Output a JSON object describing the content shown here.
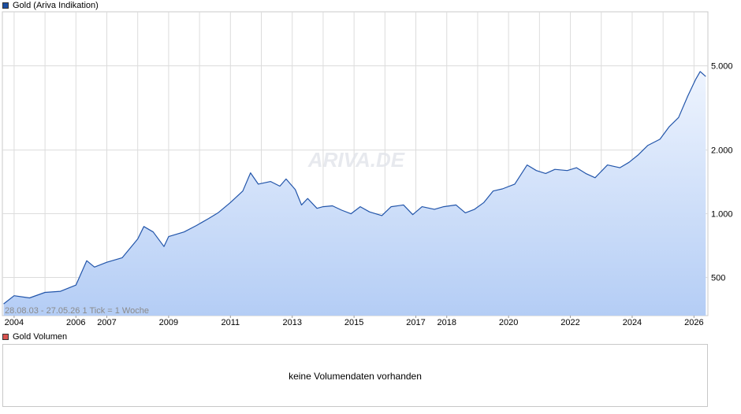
{
  "legend": {
    "price_label": "Gold (Ariva Indikation)",
    "price_color": "#1c4fa3",
    "volume_label": "Gold Volumen",
    "volume_color": "#d9534f"
  },
  "watermark": "ARIVA.DE",
  "info_text": "28.08.03 - 27.05.26    1 Tick = 1 Woche",
  "volume_panel": {
    "message": "keine Volumendaten vorhanden"
  },
  "chart_data": {
    "type": "area",
    "title": "Gold (Ariva Indikation)",
    "xlabel": "",
    "ylabel": "",
    "y_scale": "log",
    "ylim": [
      330,
      9000
    ],
    "xlim": [
      2003.62,
      2026.45
    ],
    "grid": true,
    "line_color": "#2255aa",
    "fill_top_color": "#eef4fe",
    "fill_bottom_color": "#b4cdf5",
    "y_ticks": [
      {
        "value": 500,
        "label": "500"
      },
      {
        "value": 1000,
        "label": "1.000"
      },
      {
        "value": 2000,
        "label": "2.000"
      },
      {
        "value": 5000,
        "label": "5.000"
      }
    ],
    "x_ticks": [
      {
        "value": 2004,
        "label": "2004"
      },
      {
        "value": 2006,
        "label": "2006"
      },
      {
        "value": 2007,
        "label": "2007"
      },
      {
        "value": 2009,
        "label": "2009"
      },
      {
        "value": 2011,
        "label": "2011"
      },
      {
        "value": 2013,
        "label": "2013"
      },
      {
        "value": 2015,
        "label": "2015"
      },
      {
        "value": 2017,
        "label": "2017"
      },
      {
        "value": 2018,
        "label": "2018"
      },
      {
        "value": 2020,
        "label": "2020"
      },
      {
        "value": 2022,
        "label": "2022"
      },
      {
        "value": 2024,
        "label": "2024"
      },
      {
        "value": 2026,
        "label": "2026"
      }
    ],
    "series": [
      {
        "x": [
          2003.66,
          2004.0,
          2004.5,
          2005.0,
          2005.5,
          2006.0,
          2006.35,
          2006.6,
          2007.0,
          2007.5,
          2008.0,
          2008.2,
          2008.5,
          2008.85,
          2009.0,
          2009.5,
          2009.9,
          2010.3,
          2010.6,
          2011.0,
          2011.4,
          2011.65,
          2011.9,
          2012.3,
          2012.6,
          2012.8,
          2013.1,
          2013.3,
          2013.5,
          2013.8,
          2014.0,
          2014.3,
          2014.6,
          2014.9,
          2015.2,
          2015.5,
          2015.9,
          2016.2,
          2016.6,
          2016.9,
          2017.2,
          2017.6,
          2017.9,
          2018.3,
          2018.6,
          2018.9,
          2019.2,
          2019.5,
          2019.8,
          2020.2,
          2020.6,
          2020.9,
          2021.2,
          2021.5,
          2021.9,
          2022.2,
          2022.5,
          2022.8,
          2023.2,
          2023.6,
          2023.9,
          2024.2,
          2024.5,
          2024.9,
          2025.2,
          2025.5,
          2025.8,
          2026.05,
          2026.2,
          2026.38
        ],
        "values": [
          375,
          410,
          400,
          425,
          430,
          460,
          600,
          560,
          590,
          620,
          760,
          870,
          820,
          700,
          780,
          820,
          880,
          950,
          1010,
          1130,
          1280,
          1560,
          1380,
          1420,
          1350,
          1460,
          1300,
          1100,
          1180,
          1060,
          1080,
          1090,
          1040,
          1000,
          1080,
          1020,
          980,
          1080,
          1100,
          990,
          1080,
          1050,
          1080,
          1100,
          1010,
          1050,
          1130,
          1280,
          1310,
          1380,
          1700,
          1600,
          1550,
          1620,
          1600,
          1650,
          1550,
          1480,
          1700,
          1650,
          1750,
          1900,
          2100,
          2250,
          2580,
          2850,
          3600,
          4300,
          4700,
          4450
        ],
        "name": "Gold (Ariva Indikation)"
      }
    ]
  }
}
